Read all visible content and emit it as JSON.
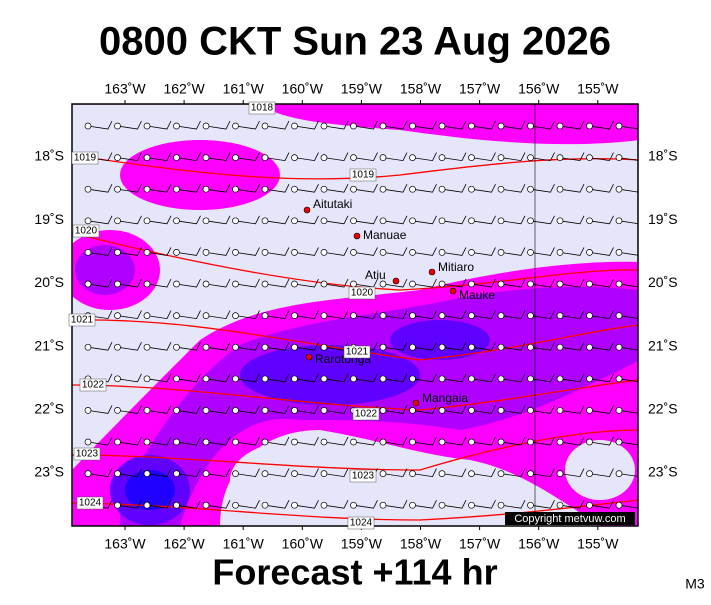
{
  "header": {
    "title": "0800 CKT Sun 23 Aug 2026"
  },
  "map": {
    "lon_labels": [
      "163˚W",
      "162˚W",
      "161˚W",
      "160˚W",
      "159˚W",
      "158˚W",
      "157˚W",
      "156˚W",
      "155˚W"
    ],
    "lat_labels": [
      "18˚S",
      "19˚S",
      "20˚S",
      "21˚S",
      "22˚S",
      "23˚S"
    ],
    "places": [
      "Aitutaki",
      "Manuae",
      "Mitiaro",
      "Atiu",
      "Mauke",
      "Rarotonga",
      "Mangaia"
    ],
    "isobar_labels": [
      "1018",
      "1019",
      "1019",
      "1020",
      "1020",
      "1021",
      "1021",
      "1022",
      "1022",
      "1023",
      "1023",
      "1024",
      "1024"
    ],
    "copyright": "Copyright metvuw.com"
  },
  "footer": {
    "forecast": "Forecast +114 hr",
    "model": "M3"
  }
}
